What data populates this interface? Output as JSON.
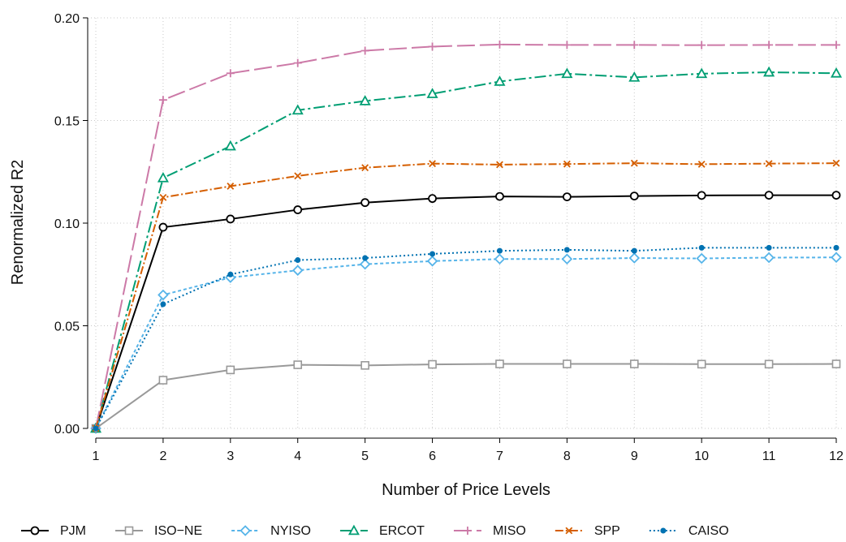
{
  "chart_data": {
    "type": "line",
    "title": "",
    "xlabel": "Number of Price Levels",
    "ylabel": "Renormalized R2",
    "x": [
      1,
      2,
      3,
      4,
      5,
      6,
      7,
      8,
      9,
      10,
      11,
      12
    ],
    "xlim": [
      1,
      12
    ],
    "ylim": [
      0,
      0.2
    ],
    "xticks": [
      "1",
      "2",
      "3",
      "4",
      "5",
      "6",
      "7",
      "8",
      "9",
      "10",
      "11",
      "12"
    ],
    "yticks": [
      "0.00",
      "0.05",
      "0.10",
      "0.15",
      "0.20"
    ],
    "grid": true,
    "legend_position": "bottom",
    "series": [
      {
        "name": "PJM",
        "color": "#000000",
        "dash": "",
        "marker": "circle",
        "values": [
          0.0,
          0.098,
          0.102,
          0.1065,
          0.11,
          0.112,
          0.113,
          0.1128,
          0.1132,
          0.1135,
          0.1136,
          0.1136
        ]
      },
      {
        "name": "ISO−NE",
        "color": "#999999",
        "dash": "",
        "marker": "square",
        "values": [
          0.0,
          0.0235,
          0.0285,
          0.031,
          0.0307,
          0.0312,
          0.0314,
          0.0314,
          0.0314,
          0.0313,
          0.0313,
          0.0314
        ]
      },
      {
        "name": "NYISO",
        "color": "#56B4E9",
        "dash": "4,3",
        "marker": "diamond",
        "values": [
          0.0,
          0.065,
          0.0735,
          0.077,
          0.08,
          0.0815,
          0.0825,
          0.0825,
          0.083,
          0.0828,
          0.0832,
          0.0833
        ]
      },
      {
        "name": "ERCOT",
        "color": "#009E73",
        "dash": "14,4,3,4",
        "marker": "triangle",
        "values": [
          0.0,
          0.122,
          0.1375,
          0.155,
          0.1595,
          0.163,
          0.169,
          0.1728,
          0.171,
          0.1728,
          0.1735,
          0.173
        ]
      },
      {
        "name": "MISO",
        "color": "#CC79A7",
        "dash": "22,6",
        "marker": "plus",
        "values": [
          0.0,
          0.16,
          0.173,
          0.178,
          0.184,
          0.186,
          0.187,
          0.1868,
          0.1868,
          0.1867,
          0.1868,
          0.1868
        ]
      },
      {
        "name": "SPP",
        "color": "#D55E00",
        "dash": "10,3,2,3",
        "marker": "x",
        "values": [
          0.0,
          0.1125,
          0.118,
          0.123,
          0.127,
          0.129,
          0.1285,
          0.1288,
          0.1292,
          0.1287,
          0.129,
          0.1292
        ]
      },
      {
        "name": "CAISO",
        "color": "#0072B2",
        "dash": "2,3",
        "marker": "dot",
        "values": [
          0.0,
          0.0605,
          0.075,
          0.082,
          0.083,
          0.085,
          0.0865,
          0.087,
          0.0865,
          0.088,
          0.088,
          0.088
        ]
      }
    ]
  }
}
